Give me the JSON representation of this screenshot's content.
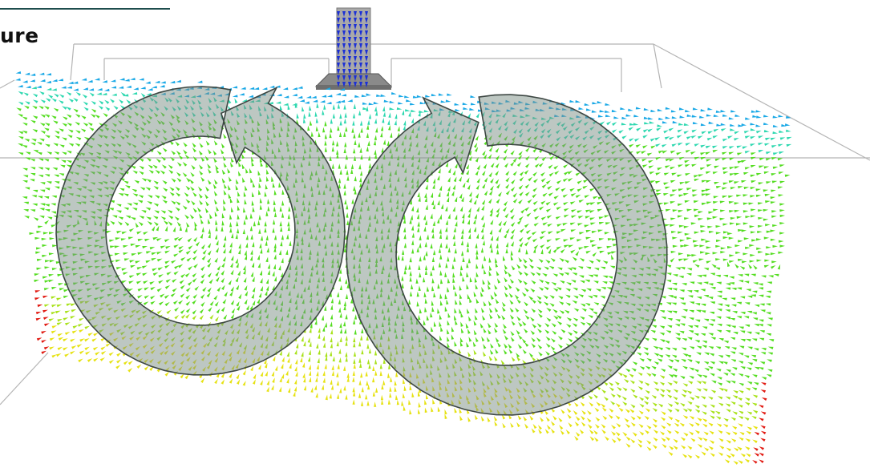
{
  "title": "ure",
  "colors": {
    "background": "#ffffff",
    "title_rule": "#1e4d4d",
    "outline": "#b4b4b4",
    "pipe": "#a9a9a9",
    "loop_fill": "#7b8f86",
    "loop_stroke": "#3d4743",
    "vector_palette": [
      "#1a2fd6",
      "#18a8e6",
      "#2ed8b0",
      "#55dd22",
      "#a8e21a",
      "#e6e212",
      "#f08a10",
      "#e11a12"
    ]
  },
  "icons": {
    "circulation_left": "counterclockwise-arrow-icon",
    "circulation_right": "clockwise-arrow-icon"
  }
}
